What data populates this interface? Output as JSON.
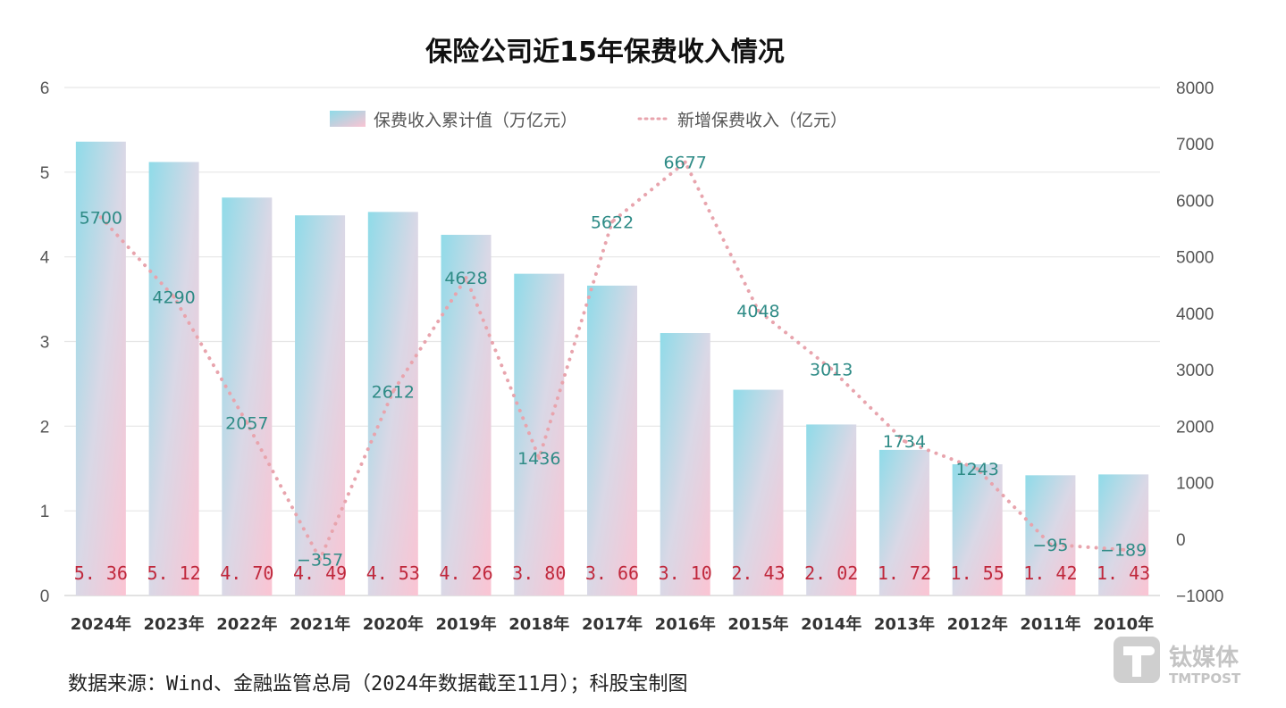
{
  "chart_data": {
    "type": "bar",
    "title": "保险公司近15年保费收入情况",
    "categories": [
      "2024年",
      "2023年",
      "2022年",
      "2021年",
      "2020年",
      "2019年",
      "2018年",
      "2017年",
      "2016年",
      "2015年",
      "2014年",
      "2013年",
      "2012年",
      "2011年",
      "2010年"
    ],
    "series": [
      {
        "name": "保费收入累计值（万亿元）",
        "type": "bar",
        "axis": "left",
        "values": [
          5.36,
          5.12,
          4.7,
          4.49,
          4.53,
          4.26,
          3.8,
          3.66,
          3.1,
          2.43,
          2.02,
          1.72,
          1.55,
          1.42,
          1.43
        ],
        "labels": [
          "5.36",
          "5.12",
          "4.70",
          "4.49",
          "4.53",
          "4.26",
          "3.80",
          "3.66",
          "3.10",
          "2.43",
          "2.02",
          "1.72",
          "1.55",
          "1.42",
          "1.43"
        ],
        "gradient": [
          "#8fdbe8",
          "#f9c6d4"
        ]
      },
      {
        "name": "新增保费收入（亿元）",
        "type": "line",
        "style": "dotted",
        "axis": "right",
        "color": "#e8a4ad",
        "values": [
          5700,
          4290,
          2057,
          -357,
          2612,
          4628,
          1436,
          5622,
          6677,
          4048,
          3013,
          1734,
          1243,
          -95,
          -189
        ],
        "labels": [
          "5700",
          "4290",
          "2057",
          "-357",
          "2612",
          "4628",
          "1436",
          "5622",
          "6677",
          "4048",
          "3013",
          "1734",
          "1243",
          "-95",
          "-189"
        ]
      }
    ],
    "yaxis_left": {
      "ticks": [
        "0",
        "1",
        "2",
        "3",
        "4",
        "5",
        "6"
      ],
      "ylim": [
        0,
        6
      ]
    },
    "yaxis_right": {
      "ticks": [
        "-1000",
        "0",
        "1000",
        "2000",
        "3000",
        "4000",
        "5000",
        "6000",
        "7000",
        "8000"
      ],
      "ylim": [
        -1000,
        8000
      ]
    },
    "grid": true,
    "legend_position": "top-center"
  },
  "source_note": "数据来源：Wind、金融监管总局（2024年数据截至11月）；科股宝制图",
  "watermark": {
    "cn": "钛媒体",
    "en": "TMTPOST"
  },
  "colors": {
    "bar_top": "#8fdbe8",
    "bar_bottom": "#f9c6d4",
    "bar_label": "#c0283c",
    "line": "#e8a4ad",
    "line_label": "#2e8b86"
  }
}
